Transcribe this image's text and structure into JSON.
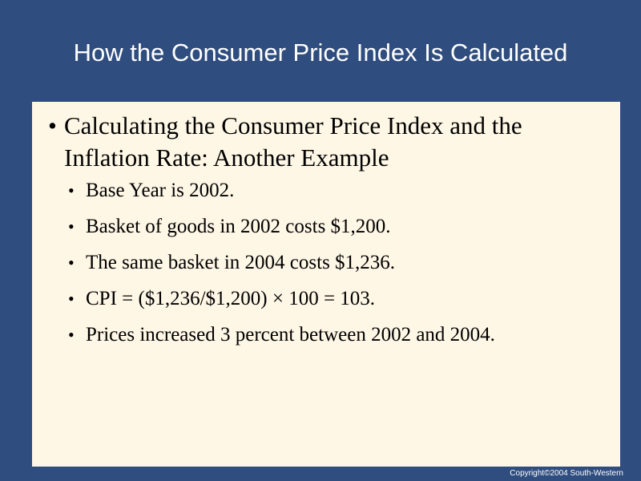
{
  "slide": {
    "title": "How the Consumer Price Index Is Calculated",
    "main_bullet": {
      "line1": "Calculating the Consumer Price Index and the",
      "line2": "Inflation Rate: Another Example"
    },
    "sub_bullets": [
      "Base Year is 2002.",
      "Basket of goods in 2002 costs $1,200.",
      "The same basket in 2004 costs $1,236.",
      "CPI = ($1,236/$1,200) × 100 = 103.",
      "Prices increased 3 percent between 2002 and 2004."
    ],
    "bullet_glyph": "•",
    "copyright": "Copyright©2004  South-Western"
  },
  "colors": {
    "background": "#2F4D7E",
    "content_box": "#FFF7E6",
    "title_text": "#FFFFFF"
  }
}
